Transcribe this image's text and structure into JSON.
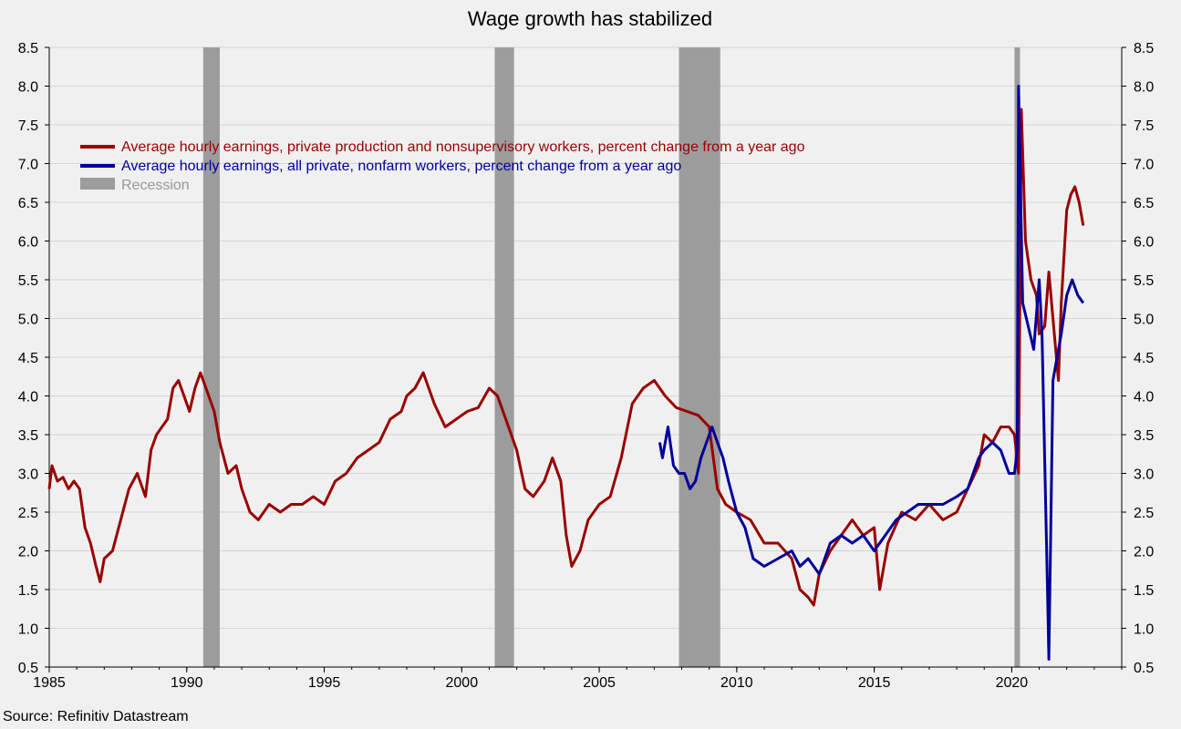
{
  "colors": {
    "background": "#f0f0f0",
    "grid": "#d4d4d4",
    "recession": "#9c9c9c",
    "production_series": "#990000",
    "all_private_series": "#000099",
    "recession_label": "#999999"
  },
  "chart_data": {
    "type": "line",
    "title": "Wage growth has stabilized",
    "source": "Source: Refinitiv Datastream",
    "xlabel": "",
    "ylabel": "",
    "xlim": [
      1985,
      2024
    ],
    "ylim": [
      0.5,
      8.5
    ],
    "x_ticks": [
      "1985",
      "1990",
      "1995",
      "2000",
      "2005",
      "2010",
      "2015",
      "2020"
    ],
    "y_ticks": [
      "0.5",
      "1.0",
      "1.5",
      "2.0",
      "2.5",
      "3.0",
      "3.5",
      "4.0",
      "4.5",
      "5.0",
      "5.5",
      "6.0",
      "6.5",
      "7.0",
      "7.5",
      "8.0",
      "8.5"
    ],
    "dual_y_axis": true,
    "grid": "horizontal",
    "legend_position": "top-left",
    "recessions": [
      {
        "start": 1990.6,
        "end": 1991.2
      },
      {
        "start": 2001.2,
        "end": 2001.9
      },
      {
        "start": 2007.9,
        "end": 2009.4
      },
      {
        "start": 2020.1,
        "end": 2020.3
      }
    ],
    "legend": {
      "production": "Average hourly earnings, private production and nonsupervisory workers, percent change from a year ago",
      "all_private": "Average hourly earnings, all private, nonfarm workers, percent change from a year ago",
      "recession": "Recession"
    },
    "series": [
      {
        "name": "Average hourly earnings, private production and nonsupervisory workers, percent change from a year ago",
        "key": "production",
        "x": [
          1985.0,
          1985.1,
          1985.3,
          1985.5,
          1985.7,
          1985.9,
          1986.1,
          1986.3,
          1986.5,
          1986.7,
          1986.85,
          1987.0,
          1987.3,
          1987.6,
          1987.9,
          1988.2,
          1988.5,
          1988.7,
          1988.9,
          1989.1,
          1989.3,
          1989.5,
          1989.7,
          1989.9,
          1990.1,
          1990.3,
          1990.5,
          1990.7,
          1991.0,
          1991.2,
          1991.5,
          1991.8,
          1992.0,
          1992.3,
          1992.6,
          1993.0,
          1993.4,
          1993.8,
          1994.2,
          1994.6,
          1995.0,
          1995.4,
          1995.8,
          1996.2,
          1996.6,
          1997.0,
          1997.4,
          1997.8,
          1998.0,
          1998.3,
          1998.6,
          1999.0,
          1999.4,
          1999.8,
          2000.2,
          2000.6,
          2001.0,
          2001.3,
          2001.6,
          2002.0,
          2002.3,
          2002.6,
          2003.0,
          2003.3,
          2003.6,
          2003.8,
          2004.0,
          2004.3,
          2004.6,
          2005.0,
          2005.4,
          2005.8,
          2006.2,
          2006.6,
          2007.0,
          2007.4,
          2007.8,
          2008.2,
          2008.6,
          2009.0,
          2009.3,
          2009.6,
          2010.0,
          2010.5,
          2011.0,
          2011.5,
          2012.0,
          2012.3,
          2012.6,
          2012.8,
          2013.0,
          2013.4,
          2013.8,
          2014.2,
          2014.6,
          2015.0,
          2015.2,
          2015.5,
          2016.0,
          2016.5,
          2017.0,
          2017.5,
          2018.0,
          2018.4,
          2018.8,
          2019.0,
          2019.3,
          2019.6,
          2019.9,
          2020.1,
          2020.25,
          2020.35,
          2020.5,
          2020.7,
          2020.9,
          2021.0,
          2021.2,
          2021.35,
          2021.5,
          2021.7,
          2021.8,
          2022.0,
          2022.15,
          2022.3,
          2022.45,
          2022.6
        ],
        "values": [
          2.8,
          3.1,
          2.9,
          2.95,
          2.8,
          2.9,
          2.8,
          2.3,
          2.1,
          1.8,
          1.6,
          1.9,
          2.0,
          2.4,
          2.8,
          3.0,
          2.7,
          3.3,
          3.5,
          3.6,
          3.7,
          4.1,
          4.2,
          4.0,
          3.8,
          4.1,
          4.3,
          4.1,
          3.8,
          3.4,
          3.0,
          3.1,
          2.8,
          2.5,
          2.4,
          2.6,
          2.5,
          2.6,
          2.6,
          2.7,
          2.6,
          2.9,
          3.0,
          3.2,
          3.3,
          3.4,
          3.7,
          3.8,
          4.0,
          4.1,
          4.3,
          3.9,
          3.6,
          3.7,
          3.8,
          3.85,
          4.1,
          4.0,
          3.7,
          3.3,
          2.8,
          2.7,
          2.9,
          3.2,
          2.9,
          2.2,
          1.8,
          2.0,
          2.4,
          2.6,
          2.7,
          3.2,
          3.9,
          4.1,
          4.2,
          4.0,
          3.85,
          3.8,
          3.75,
          3.6,
          2.8,
          2.6,
          2.5,
          2.4,
          2.1,
          2.1,
          1.9,
          1.5,
          1.4,
          1.3,
          1.7,
          2.0,
          2.2,
          2.4,
          2.2,
          2.3,
          1.5,
          2.1,
          2.5,
          2.4,
          2.6,
          2.4,
          2.5,
          2.8,
          3.1,
          3.5,
          3.4,
          3.6,
          3.6,
          3.5,
          3.0,
          7.7,
          6.0,
          5.5,
          5.3,
          4.8,
          4.9,
          5.6,
          5.0,
          4.2,
          5.2,
          6.4,
          6.6,
          6.7,
          6.5,
          6.2
        ]
      },
      {
        "name": "Average hourly earnings, all private, nonfarm workers, percent change from a year ago",
        "key": "all_private",
        "x": [
          2007.2,
          2007.3,
          2007.5,
          2007.7,
          2007.9,
          2008.1,
          2008.3,
          2008.5,
          2008.7,
          2008.9,
          2009.1,
          2009.3,
          2009.5,
          2009.7,
          2010.0,
          2010.3,
          2010.6,
          2011.0,
          2011.5,
          2012.0,
          2012.3,
          2012.6,
          2013.0,
          2013.4,
          2013.8,
          2014.2,
          2014.6,
          2015.0,
          2015.4,
          2015.8,
          2016.2,
          2016.6,
          2017.0,
          2017.5,
          2018.0,
          2018.4,
          2018.8,
          2019.0,
          2019.3,
          2019.6,
          2019.9,
          2020.1,
          2020.2,
          2020.25,
          2020.4,
          2020.6,
          2020.8,
          2021.0,
          2021.1,
          2021.3,
          2021.35,
          2021.5,
          2021.8,
          2022.0,
          2022.2,
          2022.4,
          2022.6
        ],
        "values": [
          3.4,
          3.2,
          3.6,
          3.1,
          3.0,
          3.0,
          2.8,
          2.9,
          3.2,
          3.4,
          3.6,
          3.4,
          3.2,
          2.9,
          2.5,
          2.3,
          1.9,
          1.8,
          1.9,
          2.0,
          1.8,
          1.9,
          1.7,
          2.1,
          2.2,
          2.1,
          2.2,
          2.0,
          2.2,
          2.4,
          2.5,
          2.6,
          2.6,
          2.6,
          2.7,
          2.8,
          3.2,
          3.3,
          3.4,
          3.3,
          3.0,
          3.0,
          3.3,
          8.0,
          5.2,
          4.9,
          4.6,
          5.5,
          4.8,
          1.5,
          0.6,
          4.2,
          4.8,
          5.3,
          5.5,
          5.3,
          5.2
        ]
      }
    ]
  }
}
